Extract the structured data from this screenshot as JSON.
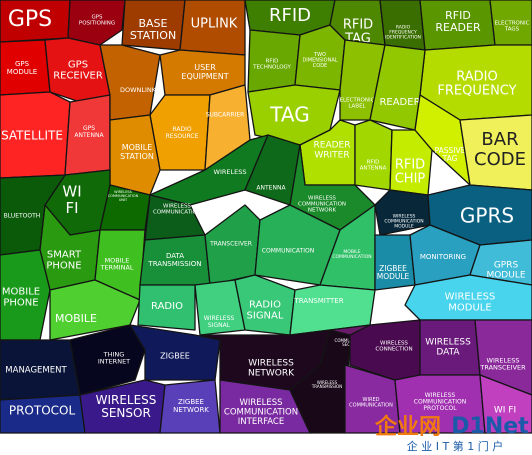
{
  "cells": [
    {
      "lines": [
        "GPS"
      ]
    },
    {
      "lines": [
        "GPS",
        "POSITIONING"
      ]
    },
    {
      "lines": [
        "GPS",
        "MODULE"
      ]
    },
    {
      "lines": [
        "GPS",
        "RECEIVER"
      ]
    },
    {
      "lines": [
        "SATELLITE"
      ]
    },
    {
      "lines": [
        "GPS",
        "ANTENNA"
      ]
    },
    {
      "lines": [
        "BASE",
        "STATION"
      ]
    },
    {
      "lines": [
        "UPLINK"
      ]
    },
    {
      "lines": [
        "DOWNLINK"
      ]
    },
    {
      "lines": [
        "USER",
        "EQUIPMENT"
      ]
    },
    {
      "lines": [
        "RADIO",
        "RESOURCE"
      ]
    },
    {
      "lines": [
        "SUBCARRIER"
      ]
    },
    {
      "lines": [
        "MOBILE",
        "STATION"
      ]
    },
    {
      "lines": [
        "RFID"
      ]
    },
    {
      "lines": [
        "RFID",
        "TECHNOLOGY"
      ]
    },
    {
      "lines": [
        "TWO",
        "DIMENSIONAL",
        "CODE"
      ]
    },
    {
      "lines": [
        "RFID",
        "TAG"
      ]
    },
    {
      "lines": [
        "RADIO",
        "FREQUENCY",
        "IDENTIFICATION"
      ]
    },
    {
      "lines": [
        "RFID",
        "READER"
      ]
    },
    {
      "lines": [
        "ELECTRONIC",
        "TAGS"
      ]
    },
    {
      "lines": [
        "ELECTRONIC",
        "LABEL"
      ]
    },
    {
      "lines": [
        "RADIO",
        "FREQUENCY"
      ]
    },
    {
      "lines": [
        "READER"
      ]
    },
    {
      "lines": [
        "TAG"
      ]
    },
    {
      "lines": [
        "READER",
        "WRITER"
      ]
    },
    {
      "lines": [
        "RFID",
        "ANTENNA"
      ]
    },
    {
      "lines": [
        "RFID",
        "CHIP"
      ]
    },
    {
      "lines": [
        "PASSIVE",
        "TAG"
      ]
    },
    {
      "lines": [
        "BAR",
        "CODE"
      ]
    },
    {
      "lines": [
        "WI",
        "FI"
      ]
    },
    {
      "lines": [
        "BLUETOOTH"
      ]
    },
    {
      "lines": [
        "WIRELESS",
        "COMMUNICATION",
        "UNIT"
      ]
    },
    {
      "lines": [
        "SMART",
        "PHONE"
      ]
    },
    {
      "lines": [
        "MOBILE",
        "TERMINAL"
      ]
    },
    {
      "lines": [
        "MOBILE",
        "PHONE"
      ]
    },
    {
      "lines": [
        "MOBILE"
      ]
    },
    {
      "lines": [
        "WIRELESS"
      ]
    },
    {
      "lines": [
        "WIRELESS",
        "COMMUNICATION"
      ]
    },
    {
      "lines": [
        "ANTENNA"
      ]
    },
    {
      "lines": [
        "WIRELESS",
        "COMMUNICATION",
        "NETWORK"
      ]
    },
    {
      "lines": [
        "DATA",
        "TRANSMISSION"
      ]
    },
    {
      "lines": [
        "TRANSCEIVER"
      ]
    },
    {
      "lines": [
        "COMMUNICATION"
      ]
    },
    {
      "lines": [
        "MOBILE",
        "COMMUNICATION"
      ]
    },
    {
      "lines": [
        "RADIO"
      ]
    },
    {
      "lines": [
        "WIRELESS",
        "SIGNAL"
      ]
    },
    {
      "lines": [
        "RADIO",
        "SIGNAL"
      ]
    },
    {
      "lines": [
        "TRANSMITTER"
      ]
    },
    {
      "lines": [
        "WIRELESS",
        "COMMUNICATION",
        "MODULE"
      ]
    },
    {
      "lines": [
        "GPRS"
      ]
    },
    {
      "lines": [
        "ZIGBEE",
        "MODULE"
      ]
    },
    {
      "lines": [
        "MONITORING"
      ]
    },
    {
      "lines": [
        "GPRS",
        "MODULE"
      ]
    },
    {
      "lines": [
        "WIRELESS",
        "MODULE"
      ]
    },
    {
      "lines": [
        "MANAGEMENT"
      ]
    },
    {
      "lines": [
        "THING",
        "INTERNET"
      ]
    },
    {
      "lines": [
        "ZIGBEE"
      ]
    },
    {
      "lines": [
        "PROTOCOL"
      ]
    },
    {
      "lines": [
        "WIRELESS",
        "SENSOR"
      ]
    },
    {
      "lines": [
        "ZIGBEE",
        "NETWORK"
      ]
    },
    {
      "lines": [
        "WIRELESS",
        "NETWORK"
      ]
    },
    {
      "lines": [
        "WIRELESS",
        "COMMUNICATION",
        "INTERFACE"
      ]
    },
    {
      "lines": [
        "WIRELESS",
        "TRANSMISSION"
      ]
    },
    {
      "lines": [
        "COMMUNICATION",
        "SECURITY"
      ]
    },
    {
      "lines": [
        "WIRED",
        "COMMUNICATION"
      ]
    },
    {
      "lines": [
        "WIRELESS",
        "CONNECTION"
      ]
    },
    {
      "lines": [
        "WIRELESS",
        "DATA"
      ]
    },
    {
      "lines": [
        "WIRELESS",
        "TRANSCEIVER"
      ]
    },
    {
      "lines": [
        "WIRELESS",
        "COMMUNICATION",
        "PROTOCOL"
      ]
    },
    {
      "lines": [
        "WI FI"
      ]
    }
  ],
  "watermark": {
    "logo_cn": "企业网",
    "logo_en": "D1Net",
    "slogan": "企 业 I T 第 1 门 户"
  }
}
